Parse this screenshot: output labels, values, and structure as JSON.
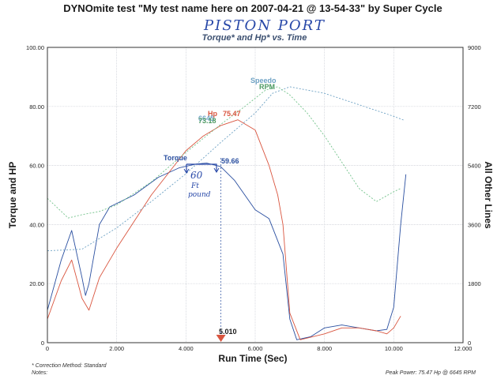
{
  "chart_data": {
    "type": "line",
    "title": "DYNOmite test \"My test name here on 2007-04-21 @ 13-54-33\" by Super Cycle",
    "subtitle": "Torque* and Hp* vs. Time",
    "xlabel": "Run Time (Sec)",
    "ylabel": "Torque and HP",
    "y2label": "All Other Lines",
    "xlim": [
      0,
      12
    ],
    "ylim": [
      0,
      100
    ],
    "y2lim": [
      0,
      9000
    ],
    "x_ticks": [
      "0",
      "2.000",
      "4.000",
      "6.000",
      "8.000",
      "10.000",
      "12.000"
    ],
    "y_ticks": [
      "0",
      "20.00",
      "40.00",
      "60.00",
      "80.00",
      "100.00"
    ],
    "y2_ticks": [
      "0",
      "1800",
      "3600",
      "5400",
      "7200",
      "9000"
    ],
    "series": [
      {
        "name": "Torque",
        "axis": "left",
        "color": "#2a4fa0",
        "x": [
          0,
          0.4,
          0.7,
          1.0,
          1.1,
          1.2,
          1.5,
          1.8,
          2.5,
          3.2,
          3.8,
          4.3,
          4.6,
          5.0,
          5.4,
          6.0,
          6.4,
          6.8,
          7.0,
          7.2,
          7.6,
          8.0,
          8.5,
          9.0,
          9.5,
          9.8,
          10.0,
          10.2,
          10.35
        ],
        "y": [
          11,
          28,
          38,
          22,
          16,
          20,
          40,
          46,
          50,
          56,
          59.2,
          60.5,
          60.8,
          59.66,
          55,
          45,
          42,
          30,
          8,
          1,
          2,
          5,
          6,
          5,
          4,
          4.5,
          12,
          40,
          57
        ]
      },
      {
        "name": "Hp",
        "axis": "left",
        "color": "#d9553f",
        "x": [
          0,
          0.4,
          0.7,
          1.0,
          1.2,
          1.5,
          2.0,
          3.0,
          4.0,
          4.5,
          5.0,
          5.5,
          6.0,
          6.4,
          6.65,
          6.8,
          7.0,
          7.3,
          8.0,
          8.5,
          9.0,
          9.5,
          9.8,
          10.0,
          10.2
        ],
        "y": [
          8,
          21,
          28,
          15,
          11,
          22,
          32,
          50,
          65,
          70,
          73.5,
          75.47,
          72,
          60,
          50,
          40,
          10,
          1,
          3,
          5,
          5,
          4,
          3,
          5,
          9
        ]
      },
      {
        "name": "Speedo",
        "axis": "right",
        "color": "#6ea2c4",
        "x": [
          0,
          1.0,
          2.0,
          3.0,
          4.0,
          5.0,
          6.0,
          6.5,
          7.0,
          8.0,
          9.0,
          10.0,
          10.3
        ],
        "y": [
          2800,
          2850,
          3500,
          4300,
          5150,
          6100,
          7000,
          7600,
          7800,
          7600,
          7250,
          6900,
          6780
        ]
      },
      {
        "name": "RPM",
        "axis": "right",
        "color": "#72c28a",
        "x": [
          0,
          0.6,
          1.0,
          1.5,
          2.0,
          3.0,
          4.0,
          5.0,
          5.7,
          6.3,
          6.65,
          7.0,
          7.5,
          8.0,
          8.5,
          9.0,
          9.5,
          10.0,
          10.2
        ],
        "y": [
          4400,
          3800,
          3900,
          4000,
          4200,
          4900,
          5800,
          6650,
          7200,
          7700,
          7800,
          7550,
          7000,
          6300,
          5500,
          4700,
          4300,
          4600,
          4700
        ]
      }
    ],
    "annotations": [
      {
        "text": "Torque",
        "value": "59.66"
      },
      {
        "text": "Hp",
        "value": "75.47"
      },
      {
        "text": "Speedo"
      },
      {
        "text": "RPM"
      },
      {
        "text": "6645"
      },
      {
        "text": "73.18"
      },
      {
        "text": "5.010",
        "x": 5.01
      }
    ],
    "handwriting": [
      "PISTON PORT",
      "60",
      "Ft",
      "pound"
    ],
    "footnote": "* Correction Method: Standard",
    "notes_label": "Notes:",
    "peak_power": "Peak Power: 75.47 Hp @ 6645 RPM"
  }
}
